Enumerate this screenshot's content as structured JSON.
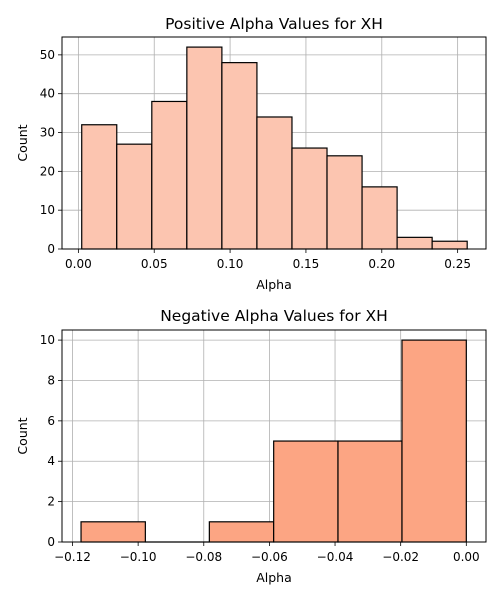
{
  "chart_data": [
    {
      "type": "bar",
      "subtype": "histogram",
      "title": "Positive Alpha Values for XH",
      "xlabel": "Alpha",
      "ylabel": "Count",
      "bar_color": "#fcc5b0",
      "edge_color": "#000000",
      "grid": true,
      "xlim": [
        -0.0108,
        0.2687
      ],
      "ylim": [
        0,
        54.6
      ],
      "xticks": [
        0.0,
        0.05,
        0.1,
        0.15,
        0.2,
        0.25
      ],
      "xtick_labels": [
        "0.00",
        "0.05",
        "0.10",
        "0.15",
        "0.20",
        "0.25"
      ],
      "yticks": [
        0,
        10,
        20,
        30,
        40,
        50
      ],
      "ytick_labels": [
        "0",
        "10",
        "20",
        "30",
        "40",
        "50"
      ],
      "bins": [
        {
          "x0": 0.0022,
          "x1": 0.0253,
          "count": 32
        },
        {
          "x0": 0.0253,
          "x1": 0.0484,
          "count": 27
        },
        {
          "x0": 0.0484,
          "x1": 0.0715,
          "count": 38
        },
        {
          "x0": 0.0715,
          "x1": 0.0946,
          "count": 52
        },
        {
          "x0": 0.0946,
          "x1": 0.1177,
          "count": 48
        },
        {
          "x0": 0.1177,
          "x1": 0.1408,
          "count": 34
        },
        {
          "x0": 0.1408,
          "x1": 0.1639,
          "count": 26
        },
        {
          "x0": 0.1639,
          "x1": 0.187,
          "count": 24
        },
        {
          "x0": 0.187,
          "x1": 0.2101,
          "count": 16
        },
        {
          "x0": 0.2101,
          "x1": 0.2332,
          "count": 3
        },
        {
          "x0": 0.2332,
          "x1": 0.2563,
          "count": 2
        }
      ]
    },
    {
      "type": "bar",
      "subtype": "histogram",
      "title": "Negative Alpha Values for XH",
      "xlabel": "Alpha",
      "ylabel": "Count",
      "bar_color": "#fca583",
      "edge_color": "#000000",
      "grid": true,
      "xlim": [
        -0.1232,
        0.006
      ],
      "ylim": [
        0,
        10.5
      ],
      "xticks": [
        -0.12,
        -0.1,
        -0.08,
        -0.06,
        -0.04,
        -0.02,
        0.0
      ],
      "xtick_labels": [
        "−0.12",
        "−0.10",
        "−0.08",
        "−0.06",
        "−0.04",
        "−0.02",
        "0.00"
      ],
      "yticks": [
        0,
        2,
        4,
        6,
        8,
        10
      ],
      "ytick_labels": [
        "0",
        "2",
        "4",
        "6",
        "8",
        "10"
      ],
      "bins": [
        {
          "x0": -0.1174,
          "x1": -0.0978,
          "count": 1
        },
        {
          "x0": -0.0978,
          "x1": -0.0783,
          "count": 0
        },
        {
          "x0": -0.0783,
          "x1": -0.0587,
          "count": 1
        },
        {
          "x0": -0.0587,
          "x1": -0.0391,
          "count": 5
        },
        {
          "x0": -0.0391,
          "x1": -0.0196,
          "count": 5
        },
        {
          "x0": -0.0196,
          "x1": 0.0,
          "count": 10
        }
      ]
    }
  ]
}
